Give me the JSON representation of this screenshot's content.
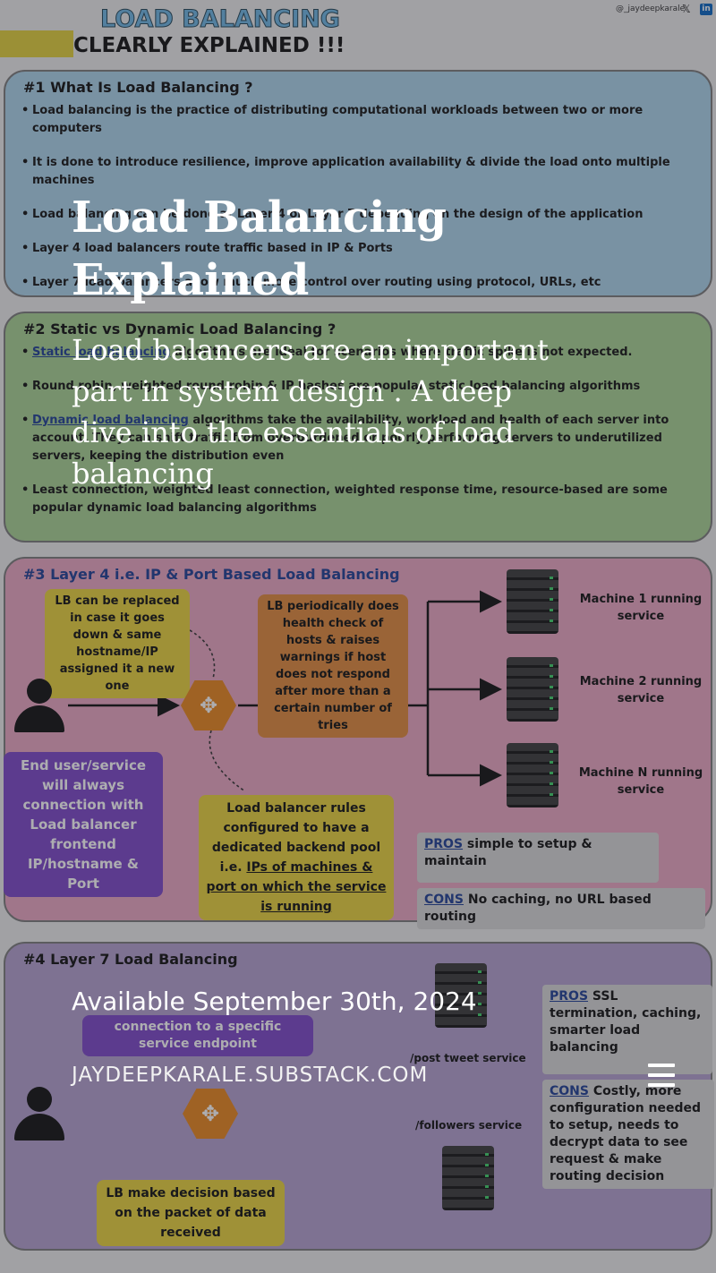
{
  "header": {
    "title_line1": "LOAD BALANCING",
    "title_line2": "CLEARLY EXPLAINED !!!",
    "handle": "@_jaydeepkarale",
    "x_icon": "x-icon",
    "linkedin_icon": "linkedin-icon"
  },
  "sections": [
    {
      "title": "#1 What Is Load Balancing ?",
      "bullets": [
        "Load balancing is the practice of distributing computational workloads between two or more computers",
        "It is done to introduce resilience, improve application availability & divide the load onto multiple machines",
        "Load balancing can be done at Layer 4 or Layer 7 depending on the design of the application",
        "Layer 4 load balancers route traffic based in IP & Ports",
        "Layer 7 load balancers allow much more control over routing using protocol, URLs, etc"
      ]
    },
    {
      "title": "#2 Static vs Dynamic Load Balancing ?",
      "bullets": [
        {
          "link": "Static load balancing",
          "text": " algorithms are ideal for scenarios where traffic spike is not expected."
        },
        {
          "link": "",
          "text": "Round robin, weighted round robin & IP hashes are popular static load balancing algorithms"
        },
        {
          "link": "Dynamic load balancing",
          "text": " algorithms take the availability, workload and health of each server into account. They can shift traffic from overburdened or poorly performing servers to underutilized servers, keeping the distribution even"
        },
        {
          "link": "",
          "text": "Least connection, weighted least connection, weighted response time, resource-based are some popular dynamic load balancing algorithms"
        }
      ]
    }
  ],
  "layer4": {
    "title": "#3 Layer 4  i.e. IP & Port Based Load Balancing",
    "lb_replace_note": "LB can be replaced in case it goes down & same hostname/IP assigned it a new one",
    "health_note": "LB periodically does health check of hosts & raises warnings if host does not respond after more than a certain number of tries",
    "end_user_note": "End user/service will always connection with Load balancer frontend IP/hostname & Port",
    "rules_note_plain": "Load balancer rules configured to have a dedicated backend pool i.e. ",
    "rules_note_link": "IPs of machines & port on which the service is running",
    "machines": [
      "Machine 1 running service",
      "Machine 2 running service",
      "Machine N running service"
    ],
    "pros_label": "PROS",
    "pros_text": " simple to setup & maintain",
    "cons_label": "CONS",
    "cons_text": " No caching, no URL based routing"
  },
  "layer7": {
    "title": "#4 Layer 7 Load Balancing",
    "connection_note": "connection to a specific service endpoint",
    "decision_note": "LB make decision based on the packet of data received",
    "services": [
      "/post tweet service",
      "/followers service"
    ],
    "pros_label": "PROS",
    "pros_text": " SSL termination, caching, smarter load balancing",
    "cons_label": "CONS",
    "cons_text": " Costly, more configuration needed to setup, needs to decrypt data to see request & make routing decision"
  },
  "overlay": {
    "title": "Load Balancing Explained",
    "description": "Load balancers are an important part in system design . A deep dive into the essentials of load balancing",
    "date": "Available September 30th, 2024",
    "site": "JAYDEEPKARALE.SUBSTACK.COM",
    "menu_icon": "hamburger-menu-icon"
  }
}
